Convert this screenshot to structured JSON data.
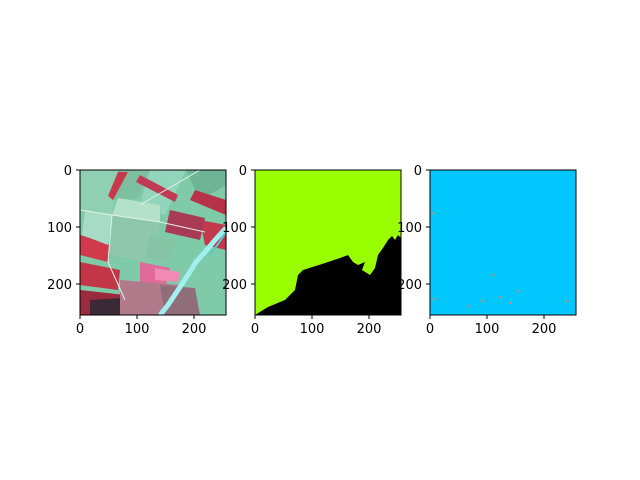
{
  "figure": {
    "background": "#ffffff",
    "panels": [
      {
        "name": "satellite-false-color-panel",
        "content": "false-color satellite image of agricultural fields with a built-up area and a river",
        "xticks": [
          "0",
          "100",
          "200"
        ],
        "yticks": [
          "0",
          "100",
          "200"
        ],
        "colors": {
          "fields": "#7fcaa8",
          "vegetation": "#c8394b",
          "water": "#9ff0ee",
          "dark": "#3a2a35"
        }
      },
      {
        "name": "binary-mask-panel",
        "content": "two-class mask: upper-left region green, lower-right region black",
        "xticks": [
          "0",
          "100",
          "200"
        ],
        "yticks": [
          "0",
          "100",
          "200"
        ],
        "colors": {
          "class_a": "#99ff00",
          "class_b": "#000000"
        }
      },
      {
        "name": "prediction-map-panel",
        "content": "mostly uniform cyan map with a few scattered small reddish specks near the bottom",
        "xticks": [
          "0",
          "100",
          "200"
        ],
        "yticks": [
          "0",
          "100",
          "200"
        ],
        "colors": {
          "background": "#00c8ff",
          "specks": "#d08a6a"
        }
      }
    ]
  }
}
